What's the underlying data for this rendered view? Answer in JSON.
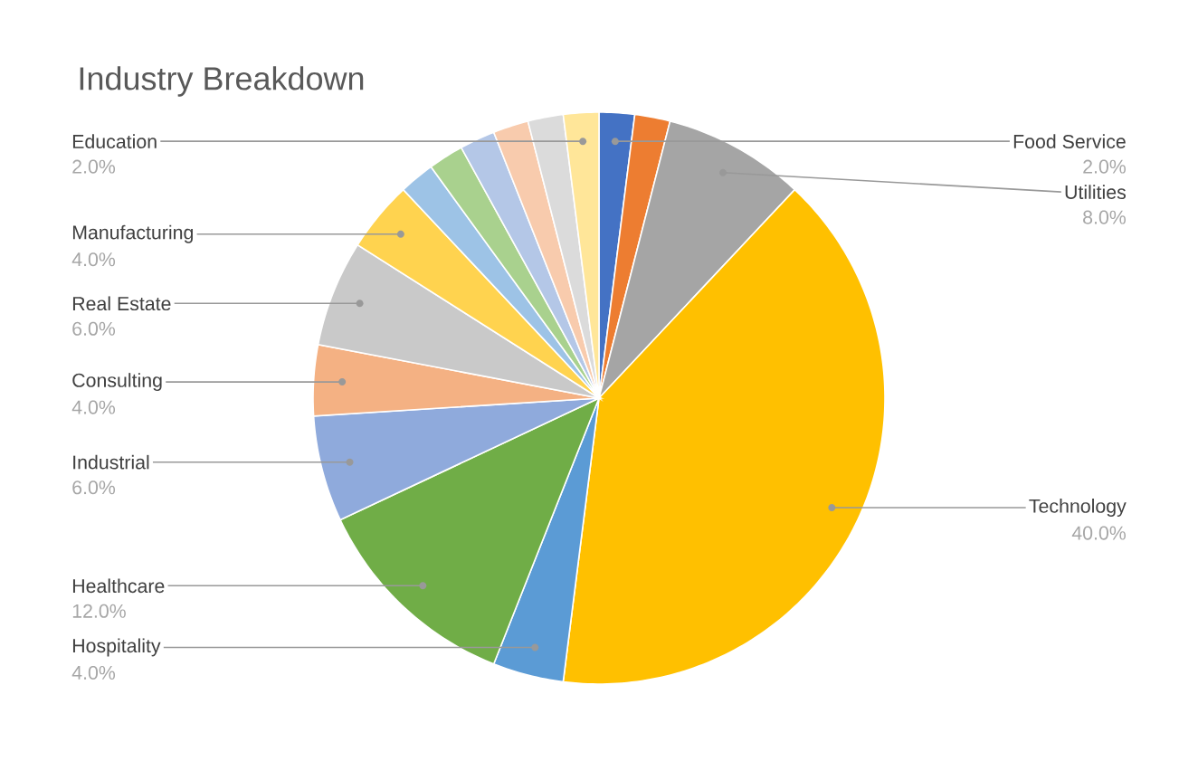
{
  "chart_data": {
    "type": "pie",
    "title": "Industry Breakdown",
    "categories": [
      "Food Service",
      null,
      "Utilities",
      "Technology",
      "Hospitality",
      "Healthcare",
      "Industrial",
      "Consulting",
      "Real Estate",
      "Manufacturing",
      null,
      null,
      null,
      null,
      null,
      "Education"
    ],
    "values": [
      2,
      2,
      8,
      40,
      4,
      12,
      6,
      4,
      6,
      4,
      2,
      2,
      2,
      2,
      2,
      2
    ],
    "value_labels": [
      "2.0%",
      null,
      "8.0%",
      "40.0%",
      "4.0%",
      "12.0%",
      "6.0%",
      "4.0%",
      "6.0%",
      "4.0%",
      null,
      null,
      null,
      null,
      null,
      "2.0%"
    ],
    "colors": [
      "#4472c4",
      "#ed7d31",
      "#a5a5a5",
      "#ffc000",
      "#5b9bd5",
      "#70ad47",
      "#8faadc",
      "#f4b183",
      "#c9c9c9",
      "#ffd34f",
      "#9dc3e6",
      "#a9d18e",
      "#b4c7e7",
      "#f8cbad",
      "#dbdbdb",
      "#ffe699"
    ]
  }
}
